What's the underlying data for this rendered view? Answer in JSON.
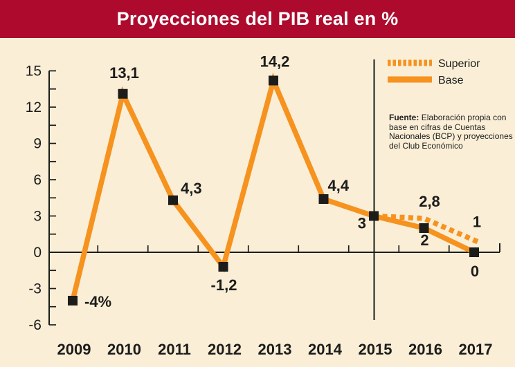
{
  "header": {
    "title": "Proyecciones del PIB real en %"
  },
  "colors": {
    "header_bg": "#ae0a2e",
    "title_text": "#ffffff",
    "background": "#faeed7",
    "line_orange": "#f6921e",
    "marker_black": "#1c1c1a",
    "axis_black": "#1c1c1a",
    "text_dark": "#1c1c1a"
  },
  "legend": {
    "items": [
      {
        "label": "Superior",
        "style": "dotted"
      },
      {
        "label": "Base",
        "style": "solid"
      }
    ]
  },
  "source": {
    "bold_prefix": "Fuente:",
    "lines": [
      "Elaboración propia con",
      "base en cifras de Cuentas",
      "Nacionales (BCP) y proyecciones",
      "del Club Económico"
    ]
  },
  "chart_data": {
    "type": "line",
    "title": "Proyecciones del PIB real en %",
    "categories": [
      "2009",
      "2010",
      "2011",
      "2012",
      "2013",
      "2014",
      "2015",
      "2016",
      "2017"
    ],
    "series": [
      {
        "name": "Base",
        "style": "solid",
        "markers": true,
        "values": [
          -4,
          13.1,
          4.3,
          -1.2,
          14.2,
          4.4,
          3,
          2,
          0
        ],
        "point_labels": [
          "-4%",
          "13,1",
          "4,3",
          "-1,2",
          "14,2",
          "4,4",
          "3",
          "2",
          "0"
        ]
      },
      {
        "name": "Superior",
        "style": "dotted",
        "markers": false,
        "values": [
          null,
          null,
          null,
          null,
          null,
          null,
          3,
          2.8,
          1
        ],
        "point_labels": [
          null,
          null,
          null,
          null,
          null,
          null,
          null,
          "2,8",
          "1"
        ]
      }
    ],
    "ylim": [
      -6,
      15
    ],
    "yticks": [
      15,
      12,
      9,
      6,
      3,
      0,
      -3,
      -6
    ],
    "minor_ytick_step": 1.5,
    "xlabel": "",
    "ylabel": "",
    "grid": false,
    "legend_position": "top-right",
    "projection_divider_after_category": "2015"
  }
}
